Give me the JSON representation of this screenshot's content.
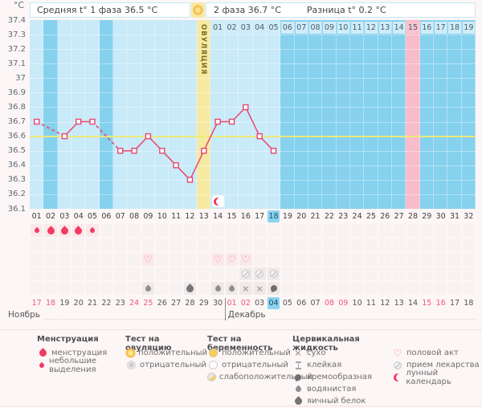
{
  "header": {
    "phase1_label": "Средняя t° 1 фаза 36.5 °C",
    "phase2_label": "2 фаза 36.7 °C",
    "diff_label": "Разница t° 0.2 °C",
    "ovulation_header_icon": "test-positive"
  },
  "chart_data": {
    "type": "line",
    "ylabel": "°C",
    "ylim": [
      36.1,
      37.4
    ],
    "y_ticks": [
      "37.4",
      "37.3",
      "37.2",
      "37.1",
      "37",
      "36.9",
      "36.8",
      "36.7",
      "36.6",
      "36.5",
      "36.4",
      "36.3",
      "36.2",
      "36.1"
    ],
    "days_in_cycle": 32,
    "coverline_temp": 36.6,
    "ovulation_day": 13,
    "ovulation_label": "ОВУЛЯЦИЯ",
    "period_expected_day": 28,
    "highlighted_day": 18,
    "lunar_icon_day": 14,
    "temperatures": [
      {
        "day": 1,
        "temp": 36.7
      },
      {
        "day": 3,
        "temp": 36.6
      },
      {
        "day": 4,
        "temp": 36.7
      },
      {
        "day": 5,
        "temp": 36.7
      },
      {
        "day": 7,
        "temp": 36.5
      },
      {
        "day": 8,
        "temp": 36.5
      },
      {
        "day": 9,
        "temp": 36.6
      },
      {
        "day": 10,
        "temp": 36.5
      },
      {
        "day": 11,
        "temp": 36.4
      },
      {
        "day": 12,
        "temp": 36.3
      },
      {
        "day": 13,
        "temp": 36.5
      },
      {
        "day": 14,
        "temp": 36.7
      },
      {
        "day": 15,
        "temp": 36.7
      },
      {
        "day": 16,
        "temp": 36.8
      },
      {
        "day": 17,
        "temp": 36.6
      },
      {
        "day": 18,
        "temp": 36.5
      }
    ],
    "luteal_day_numbers": {
      "start_day": 14,
      "labels": [
        "01",
        "02",
        "03",
        "04",
        "05",
        "06",
        "07",
        "08",
        "09",
        "10",
        "11",
        "12",
        "13",
        "14",
        "15",
        "16",
        "17",
        "18",
        "19"
      ],
      "highlight_label": "15"
    }
  },
  "day_labels": [
    "01",
    "02",
    "03",
    "04",
    "05",
    "06",
    "07",
    "08",
    "09",
    "10",
    "11",
    "12",
    "13",
    "14",
    "15",
    "16",
    "17",
    "18",
    "19",
    "20",
    "21",
    "22",
    "23",
    "24",
    "25",
    "26",
    "27",
    "28",
    "29",
    "30",
    "31",
    "32"
  ],
  "symbol_rows": [
    {
      "name": "menstruation",
      "items": {
        "1": "drop-small",
        "2": "drop-big",
        "3": "drop-big",
        "4": "drop-big",
        "5": "drop-small"
      }
    },
    {
      "name": "tests",
      "items": {}
    },
    {
      "name": "intercourse",
      "items": {
        "9": "heart",
        "14": "heart",
        "15": "heart",
        "16": "heart"
      }
    },
    {
      "name": "medication",
      "items": {
        "16": "pill",
        "17": "pill",
        "18": "pill"
      }
    },
    {
      "name": "cervical-fluid",
      "items": {
        "9": "drop-watery",
        "12": "drop-eggwhite",
        "14": "drop-watery",
        "15": "drop-watery",
        "16": "cross-dry",
        "17": "cross-dry",
        "18": "comma-creamy"
      }
    }
  ],
  "calendar": {
    "divider_after_day": 14,
    "months": [
      {
        "label": "Ноябрь"
      },
      {
        "label": "Декабрь"
      }
    ],
    "dates": [
      {
        "label": "17",
        "red": true
      },
      {
        "label": "18",
        "red": true
      },
      {
        "label": "19"
      },
      {
        "label": "20"
      },
      {
        "label": "21"
      },
      {
        "label": "22"
      },
      {
        "label": "23"
      },
      {
        "label": "24",
        "red": true
      },
      {
        "label": "25",
        "red": true
      },
      {
        "label": "26"
      },
      {
        "label": "27"
      },
      {
        "label": "28"
      },
      {
        "label": "29"
      },
      {
        "label": "30"
      },
      {
        "label": "01",
        "red": true
      },
      {
        "label": "02",
        "red": true
      },
      {
        "label": "03"
      },
      {
        "label": "04",
        "today": true
      },
      {
        "label": "05"
      },
      {
        "label": "06"
      },
      {
        "label": "07"
      },
      {
        "label": "08",
        "red": true
      },
      {
        "label": "09",
        "red": true
      },
      {
        "label": "10"
      },
      {
        "label": "11"
      },
      {
        "label": "12"
      },
      {
        "label": "13"
      },
      {
        "label": "14"
      },
      {
        "label": "15",
        "red": true
      },
      {
        "label": "16",
        "red": true
      },
      {
        "label": "17"
      },
      {
        "label": "18"
      }
    ]
  },
  "legend": {
    "groups": [
      {
        "title": "Менструация",
        "items": [
          {
            "icon": "drop-big",
            "label": "менструация"
          },
          {
            "icon": "drop-small",
            "label": "небольшие выделения"
          }
        ]
      },
      {
        "title": "Тест на овуляцию",
        "items": [
          {
            "icon": "test-positive",
            "label": "положительный"
          },
          {
            "icon": "test-negative",
            "label": "отрицательный"
          }
        ]
      },
      {
        "title": "Тест на беременность",
        "items": [
          {
            "icon": "preg-positive",
            "label": "положительный"
          },
          {
            "icon": "preg-negative",
            "label": "отрицательный"
          },
          {
            "icon": "preg-weak",
            "label": "слабоположительный"
          }
        ]
      },
      {
        "title": "Цервикальная жидкость",
        "items": [
          {
            "icon": "cross-dry",
            "label": "сухо"
          },
          {
            "icon": "sticky",
            "label": "клейкая"
          },
          {
            "icon": "comma-creamy",
            "label": "кремообразная"
          },
          {
            "icon": "drop-watery",
            "label": "водянистая"
          },
          {
            "icon": "drop-eggwhite",
            "label": "яичный белок"
          }
        ]
      },
      {
        "title": "",
        "items": [
          {
            "icon": "heart",
            "label": "половой акт"
          },
          {
            "icon": "pill",
            "label": "прием лекарства"
          },
          {
            "icon": "moon",
            "label": "лунный календарь"
          }
        ]
      }
    ]
  },
  "colors": {
    "page_bg": "#fdf6f6",
    "chart_bg": "#85d1ee",
    "measured_bar": "#c9eaf8",
    "ovulation_column": "#f6e9a2",
    "period_column": "#f8bcca",
    "coverline": "#ece97b",
    "temp_line": "#e8476e",
    "menstruation_red": "#f23a63",
    "weekend_date": "#f05680",
    "today_highlight": "#8ad4f2"
  }
}
